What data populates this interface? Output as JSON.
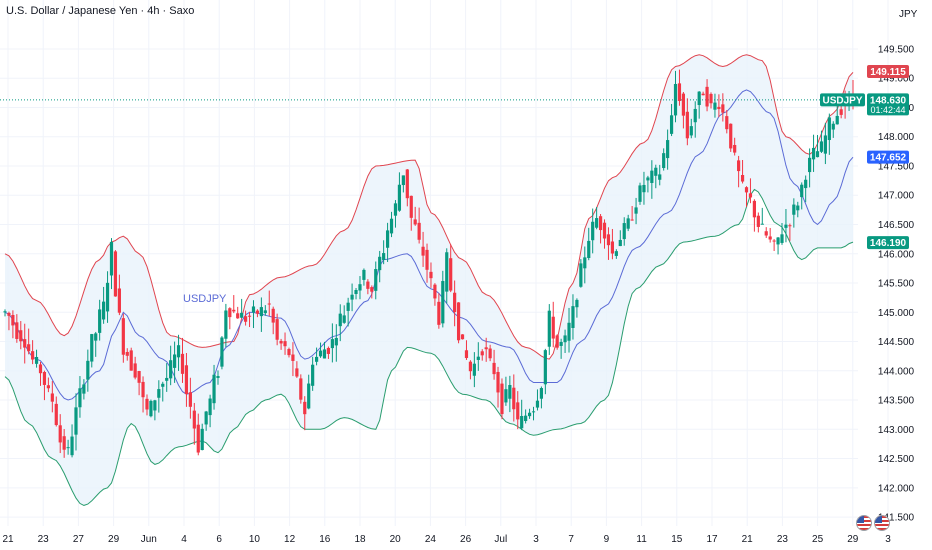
{
  "header": {
    "title": "U.S. Dollar / Japanese Yen · 4h · Saxo",
    "currency": "JPY"
  },
  "icons": {
    "flag_left": "us-flag-icon",
    "flag_right": "us-flag-icon"
  },
  "colors": {
    "up": "#089981",
    "down": "#f23645",
    "upper_band": "#e0454f",
    "lower_band": "#2a9d6f",
    "basis": "#5b6bd6",
    "fill": "#e8f2fb",
    "price_tag": "#089981",
    "upper_tag": "#e0454f",
    "basis_tag": "#2962ff",
    "lower_tag": "#089981"
  },
  "chart_data": {
    "type": "candlestick",
    "symbol": "USDJPY",
    "ylim": [
      141.45,
      150.2
    ],
    "y_ticks": [
      "149.500",
      "149.000",
      "148.500",
      "148.000",
      "147.500",
      "147.000",
      "146.500",
      "146.000",
      "145.500",
      "145.000",
      "144.500",
      "144.000",
      "143.500",
      "143.000",
      "142.500",
      "142.000",
      "141.500"
    ],
    "x_ticks": [
      "21",
      "23",
      "27",
      "29",
      "Jun",
      "4",
      "6",
      "10",
      "12",
      "16",
      "18",
      "20",
      "24",
      "26",
      "Jul",
      "3",
      "7",
      "9",
      "11",
      "15",
      "17",
      "21",
      "23",
      "25",
      "29",
      "3"
    ],
    "last_price": 148.63,
    "countdown": "01:42:44",
    "upper_band_value": 149.115,
    "basis_value": 147.652,
    "lower_band_value": 146.19,
    "anchors": {
      "upper": [
        [
          0,
          146.0
        ],
        [
          8,
          145.2
        ],
        [
          15,
          144.6
        ],
        [
          24,
          145.9
        ],
        [
          27,
          146.2
        ],
        [
          30,
          146.3
        ],
        [
          34,
          146.0
        ],
        [
          42,
          144.6
        ],
        [
          50,
          144.4
        ],
        [
          58,
          144.5
        ],
        [
          62,
          145.3
        ],
        [
          70,
          145.6
        ],
        [
          78,
          145.8
        ],
        [
          86,
          146.4
        ],
        [
          94,
          147.5
        ],
        [
          104,
          147.6
        ],
        [
          108,
          146.7
        ],
        [
          116,
          145.9
        ],
        [
          122,
          145.3
        ],
        [
          132,
          144.4
        ],
        [
          138,
          144.2
        ],
        [
          144,
          145.5
        ],
        [
          148,
          146.6
        ],
        [
          154,
          147.3
        ],
        [
          162,
          147.9
        ],
        [
          170,
          149.2
        ],
        [
          176,
          149.4
        ],
        [
          182,
          149.2
        ],
        [
          188,
          149.4
        ],
        [
          192,
          149.3
        ],
        [
          198,
          148.0
        ],
        [
          204,
          147.7
        ],
        [
          210,
          148.4
        ],
        [
          215,
          149.1
        ]
      ],
      "basis": [
        [
          0,
          145.0
        ],
        [
          8,
          144.2
        ],
        [
          16,
          143.5
        ],
        [
          24,
          144.0
        ],
        [
          28,
          144.7
        ],
        [
          30,
          145.0
        ],
        [
          34,
          144.6
        ],
        [
          40,
          144.2
        ],
        [
          46,
          143.6
        ],
        [
          52,
          143.8
        ],
        [
          56,
          144.4
        ],
        [
          62,
          145.0
        ],
        [
          70,
          144.9
        ],
        [
          76,
          144.2
        ],
        [
          84,
          144.6
        ],
        [
          92,
          145.2
        ],
        [
          96,
          145.9
        ],
        [
          102,
          146.0
        ],
        [
          108,
          145.4
        ],
        [
          116,
          144.9
        ],
        [
          122,
          144.5
        ],
        [
          128,
          144.4
        ],
        [
          134,
          143.8
        ],
        [
          140,
          143.8
        ],
        [
          146,
          144.5
        ],
        [
          152,
          145.1
        ],
        [
          160,
          146.1
        ],
        [
          168,
          146.7
        ],
        [
          176,
          147.7
        ],
        [
          182,
          148.4
        ],
        [
          188,
          148.8
        ],
        [
          194,
          148.4
        ],
        [
          200,
          147.2
        ],
        [
          206,
          146.5
        ],
        [
          210,
          146.9
        ],
        [
          215,
          147.65
        ]
      ],
      "lower": [
        [
          0,
          143.9
        ],
        [
          6,
          143.1
        ],
        [
          12,
          142.5
        ],
        [
          20,
          141.7
        ],
        [
          26,
          142.0
        ],
        [
          32,
          143.1
        ],
        [
          38,
          142.4
        ],
        [
          44,
          142.7
        ],
        [
          50,
          142.8
        ],
        [
          54,
          142.6
        ],
        [
          58,
          143.0
        ],
        [
          62,
          143.3
        ],
        [
          66,
          143.5
        ],
        [
          70,
          143.6
        ],
        [
          76,
          143.0
        ],
        [
          80,
          143.0
        ],
        [
          86,
          143.2
        ],
        [
          94,
          143.0
        ],
        [
          98,
          144.0
        ],
        [
          102,
          144.4
        ],
        [
          108,
          144.3
        ],
        [
          116,
          143.6
        ],
        [
          122,
          143.5
        ],
        [
          128,
          143.1
        ],
        [
          134,
          142.9
        ],
        [
          140,
          143.0
        ],
        [
          146,
          143.1
        ],
        [
          152,
          143.5
        ],
        [
          160,
          145.4
        ],
        [
          166,
          145.8
        ],
        [
          172,
          146.2
        ],
        [
          180,
          146.3
        ],
        [
          186,
          146.5
        ],
        [
          190,
          147.1
        ],
        [
          196,
          146.5
        ],
        [
          202,
          145.9
        ],
        [
          206,
          146.1
        ],
        [
          212,
          146.1
        ],
        [
          215,
          146.2
        ]
      ],
      "price": [
        [
          0,
          145.0
        ],
        [
          4,
          144.6
        ],
        [
          8,
          144.1
        ],
        [
          12,
          143.5
        ],
        [
          14,
          142.8
        ],
        [
          16,
          142.6
        ],
        [
          18,
          143.3
        ],
        [
          20,
          143.9
        ],
        [
          22,
          144.5
        ],
        [
          25,
          145.1
        ],
        [
          27,
          146.1
        ],
        [
          28,
          145.4
        ],
        [
          30,
          144.4
        ],
        [
          33,
          144.0
        ],
        [
          36,
          143.3
        ],
        [
          40,
          143.8
        ],
        [
          44,
          144.3
        ],
        [
          47,
          143.4
        ],
        [
          49,
          142.7
        ],
        [
          51,
          143.3
        ],
        [
          54,
          144.0
        ],
        [
          56,
          145.1
        ],
        [
          58,
          145.0
        ],
        [
          61,
          144.9
        ],
        [
          64,
          145.0
        ],
        [
          67,
          145.1
        ],
        [
          69,
          144.5
        ],
        [
          72,
          144.3
        ],
        [
          74,
          143.8
        ],
        [
          76,
          143.3
        ],
        [
          78,
          144.2
        ],
        [
          82,
          144.4
        ],
        [
          86,
          145.0
        ],
        [
          88,
          145.4
        ],
        [
          91,
          145.6
        ],
        [
          93,
          145.4
        ],
        [
          95,
          145.9
        ],
        [
          98,
          146.6
        ],
        [
          101,
          147.4
        ],
        [
          103,
          146.6
        ],
        [
          106,
          146.0
        ],
        [
          108,
          145.5
        ],
        [
          110,
          144.9
        ],
        [
          112,
          145.9
        ],
        [
          113,
          145.4
        ],
        [
          116,
          144.4
        ],
        [
          118,
          144.0
        ],
        [
          121,
          144.4
        ],
        [
          124,
          144.0
        ],
        [
          126,
          143.4
        ],
        [
          128,
          143.7
        ],
        [
          130,
          143.1
        ],
        [
          134,
          143.4
        ],
        [
          136,
          143.8
        ],
        [
          138,
          144.9
        ],
        [
          140,
          144.4
        ],
        [
          142,
          144.5
        ],
        [
          144,
          145.0
        ],
        [
          146,
          145.7
        ],
        [
          148,
          146.3
        ],
        [
          150,
          146.6
        ],
        [
          152,
          146.4
        ],
        [
          154,
          146.0
        ],
        [
          156,
          146.3
        ],
        [
          158,
          146.5
        ],
        [
          160,
          146.9
        ],
        [
          162,
          147.2
        ],
        [
          164,
          147.3
        ],
        [
          166,
          147.4
        ],
        [
          168,
          148.0
        ],
        [
          169,
          148.3
        ],
        [
          170,
          148.9
        ],
        [
          171,
          148.7
        ],
        [
          173,
          148.0
        ],
        [
          175,
          148.5
        ],
        [
          177,
          148.8
        ],
        [
          179,
          148.5
        ],
        [
          181,
          148.6
        ],
        [
          183,
          148.2
        ],
        [
          185,
          147.6
        ],
        [
          187,
          147.1
        ],
        [
          189,
          146.9
        ],
        [
          191,
          146.5
        ],
        [
          193,
          146.3
        ],
        [
          195,
          146.1
        ],
        [
          197,
          146.4
        ],
        [
          199,
          146.6
        ],
        [
          201,
          146.9
        ],
        [
          203,
          147.4
        ],
        [
          205,
          147.7
        ],
        [
          207,
          147.8
        ],
        [
          209,
          148.2
        ],
        [
          211,
          148.4
        ],
        [
          213,
          148.6
        ],
        [
          215,
          148.63
        ]
      ]
    }
  }
}
